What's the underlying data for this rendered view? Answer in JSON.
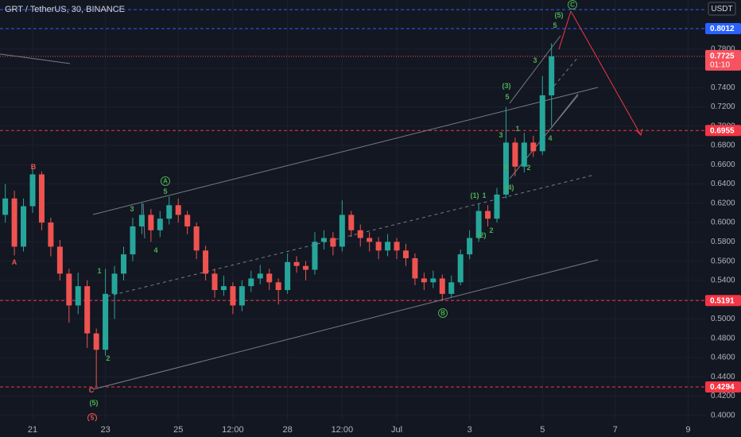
{
  "chart_data": {
    "type": "candlestick",
    "title": "GRT / TetherUS, 30, BINANCE",
    "currency": "USDT",
    "x": [
      20.25,
      20.5,
      20.75,
      21,
      21.25,
      21.5,
      21.75,
      22,
      22.25,
      22.5,
      22.75,
      23,
      23.25,
      23.5,
      23.75,
      24,
      24.25,
      24.5,
      24.75,
      25,
      25.25,
      25.5,
      25.75,
      26,
      26.25,
      26.5,
      26.75,
      27,
      27.25,
      27.5,
      27.75,
      28,
      28.25,
      28.5,
      28.75,
      29,
      29.25,
      29.5,
      29.75,
      30,
      30.25,
      30.5,
      30.75,
      31,
      31.25,
      31.5,
      31.75,
      32,
      32.25,
      32.5,
      32.75,
      33,
      33.25,
      33.5,
      33.75,
      34,
      34.25,
      34.5,
      34.75,
      35,
      35.25
    ],
    "open": [
      0.608,
      0.625,
      0.575,
      0.617,
      0.65,
      0.6,
      0.575,
      0.547,
      0.514,
      0.534,
      0.485,
      0.468,
      0.526,
      0.547,
      0.567,
      0.596,
      0.608,
      0.592,
      0.604,
      0.618,
      0.608,
      0.596,
      0.571,
      0.547,
      0.53,
      0.534,
      0.514,
      0.534,
      0.542,
      0.547,
      0.538,
      0.53,
      0.559,
      0.555,
      0.551,
      0.58,
      0.584,
      0.575,
      0.608,
      0.592,
      0.584,
      0.58,
      0.571,
      0.58,
      0.571,
      0.563,
      0.542,
      0.538,
      0.542,
      0.526,
      0.538,
      0.567,
      0.584,
      0.612,
      0.604,
      0.629,
      0.683,
      0.658,
      0.683,
      0.674,
      0.732
    ],
    "high": [
      0.64,
      0.633,
      0.625,
      0.657,
      0.653,
      0.605,
      0.582,
      0.552,
      0.548,
      0.54,
      0.49,
      0.552,
      0.555,
      0.575,
      0.605,
      0.62,
      0.614,
      0.612,
      0.627,
      0.625,
      0.612,
      0.6,
      0.576,
      0.552,
      0.545,
      0.538,
      0.54,
      0.55,
      0.556,
      0.552,
      0.542,
      0.568,
      0.565,
      0.56,
      0.59,
      0.592,
      0.59,
      0.623,
      0.612,
      0.598,
      0.59,
      0.585,
      0.588,
      0.584,
      0.578,
      0.568,
      0.548,
      0.55,
      0.546,
      0.545,
      0.572,
      0.592,
      0.62,
      0.618,
      0.636,
      0.72,
      0.688,
      0.693,
      0.69,
      0.752,
      0.786
    ],
    "low": [
      0.6,
      0.566,
      0.57,
      0.61,
      0.592,
      0.565,
      0.54,
      0.496,
      0.505,
      0.47,
      0.4294,
      0.462,
      0.5,
      0.54,
      0.56,
      0.588,
      0.58,
      0.585,
      0.598,
      0.6,
      0.588,
      0.562,
      0.54,
      0.522,
      0.524,
      0.505,
      0.508,
      0.528,
      0.536,
      0.53,
      0.515,
      0.526,
      0.548,
      0.54,
      0.546,
      0.572,
      0.566,
      0.57,
      0.585,
      0.575,
      0.57,
      0.562,
      0.565,
      0.562,
      0.555,
      0.535,
      0.53,
      0.532,
      0.519,
      0.522,
      0.535,
      0.562,
      0.58,
      0.596,
      0.6,
      0.625,
      0.648,
      0.652,
      0.668,
      0.67,
      0.7
    ],
    "close": [
      0.625,
      0.575,
      0.617,
      0.65,
      0.6,
      0.575,
      0.547,
      0.514,
      0.534,
      0.485,
      0.468,
      0.526,
      0.547,
      0.567,
      0.596,
      0.608,
      0.592,
      0.604,
      0.618,
      0.608,
      0.596,
      0.571,
      0.547,
      0.53,
      0.534,
      0.514,
      0.534,
      0.542,
      0.547,
      0.538,
      0.53,
      0.559,
      0.555,
      0.551,
      0.58,
      0.584,
      0.575,
      0.608,
      0.592,
      0.584,
      0.58,
      0.571,
      0.58,
      0.571,
      0.563,
      0.542,
      0.538,
      0.542,
      0.526,
      0.538,
      0.567,
      0.584,
      0.612,
      0.604,
      0.629,
      0.683,
      0.658,
      0.683,
      0.674,
      0.732,
      0.7725
    ],
    "up_color": "#26a69a",
    "down_color": "#ef5350",
    "xlim": [
      20.105,
      39.47
    ],
    "xticks": [
      21,
      23,
      25,
      {
        "value": 26.5,
        "label": "12:00"
      },
      28,
      {
        "value": 29.5,
        "label": "12:00"
      },
      {
        "value": 31,
        "label": "Jul"
      },
      {
        "value": 33,
        "label": "3"
      },
      {
        "value": 35,
        "label": "5"
      },
      {
        "value": 37,
        "label": "7"
      },
      {
        "value": 39,
        "label": "9"
      }
    ],
    "ylim": [
      0.394,
      0.8309
    ],
    "yticks": [
      {
        "value": 0.4,
        "label": "0.4000"
      },
      {
        "value": 0.42,
        "label": "0.4200"
      },
      {
        "value": 0.44,
        "label": "0.4400"
      },
      {
        "value": 0.46,
        "label": "0.4600"
      },
      {
        "value": 0.48,
        "label": "0.4800"
      },
      {
        "value": 0.5,
        "label": "0.5000"
      },
      {
        "value": 0.52,
        "label": "0.5200"
      },
      {
        "value": 0.54,
        "label": "0.5400"
      },
      {
        "value": 0.56,
        "label": "0.5600"
      },
      {
        "value": 0.58,
        "label": "0.5800"
      },
      {
        "value": 0.6,
        "label": "0.6000"
      },
      {
        "value": 0.62,
        "label": "0.6200"
      },
      {
        "value": 0.64,
        "label": "0.6400"
      },
      {
        "value": 0.66,
        "label": "0.6600"
      },
      {
        "value": 0.68,
        "label": "0.6800"
      },
      {
        "value": 0.7,
        "label": "0.7000"
      },
      {
        "value": 0.72,
        "label": "0.7200"
      },
      {
        "value": 0.74,
        "label": "0.7400"
      },
      {
        "value": 0.76,
        "label": "0.7600"
      },
      {
        "value": 0.78,
        "label": "0.7800"
      }
    ],
    "levels": [
      {
        "value": 0.8209,
        "color": "#2962ff",
        "tag": false
      },
      {
        "value": 0.8012,
        "color": "#2962ff",
        "tag": true
      },
      {
        "value": 0.6955,
        "color": "#f23645",
        "tag": true
      },
      {
        "value": 0.5191,
        "color": "#f23645",
        "tag": true
      },
      {
        "value": 0.4294,
        "color": "#f23645",
        "tag": true
      }
    ],
    "last_price": 0.7725,
    "countdown": "01:10",
    "annotations": [
      "A",
      "B",
      "C",
      "5",
      "(5)",
      "1",
      "2",
      "3",
      "4",
      "5",
      "A",
      "B",
      "(1)",
      "1",
      "(2)",
      "2",
      "(3)",
      "5",
      "3",
      "4",
      "(4)",
      "1",
      "2",
      "3",
      "4",
      "(5)",
      "5",
      "C"
    ]
  }
}
